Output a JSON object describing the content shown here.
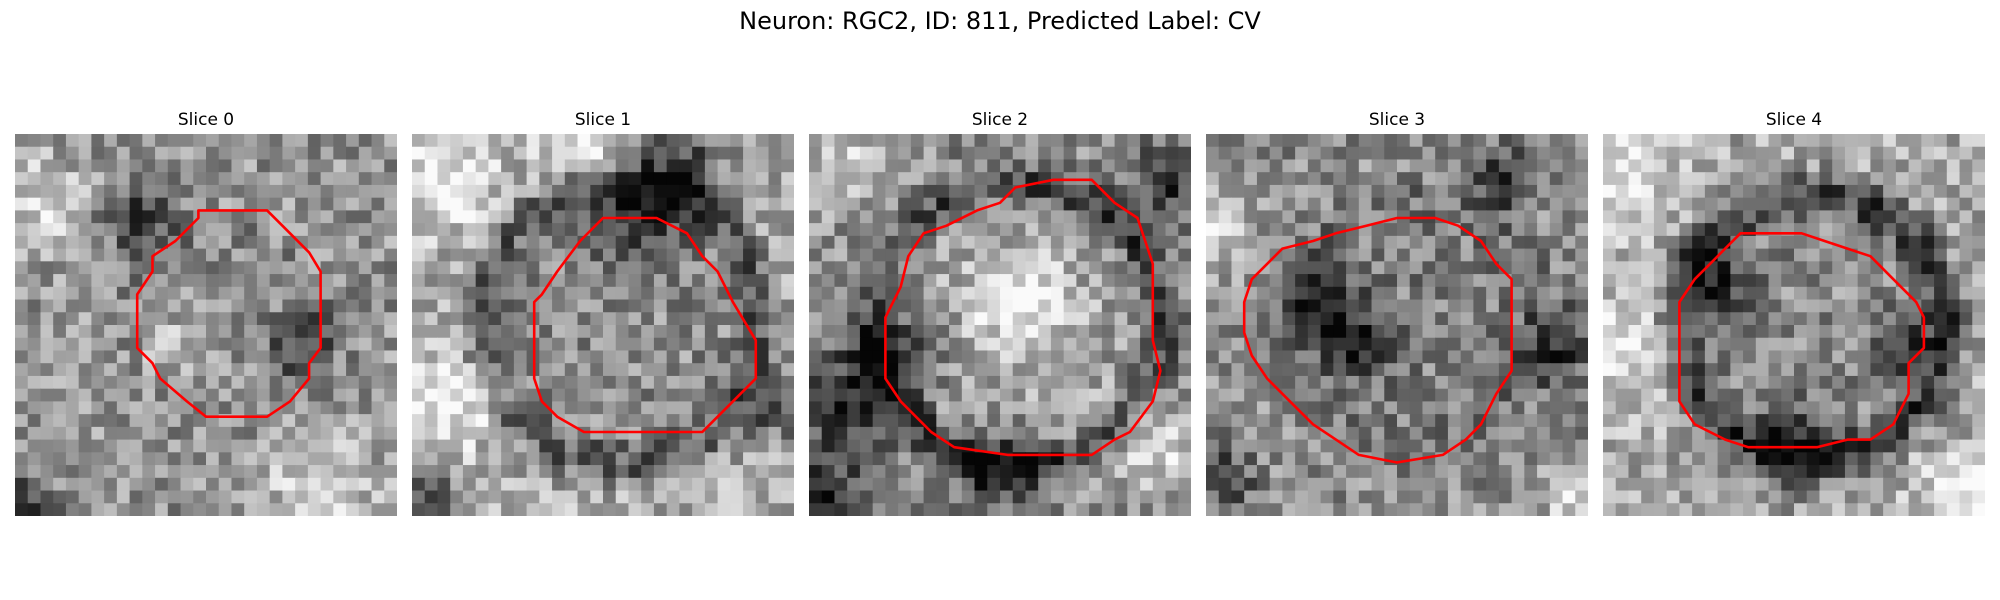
{
  "figure": {
    "title": "Neuron: RGC2, ID: 811, Predicted Label: CV"
  },
  "panels": [
    {
      "title": "Slice 0",
      "seed": 11,
      "base": 0.58,
      "ring": {
        "r": 0.24,
        "depth": 0.05
      },
      "inner": 0.56,
      "dark_blobs": [
        [
          0.33,
          0.22,
          0.07
        ],
        [
          0.02,
          0.98,
          0.06
        ],
        [
          0.75,
          0.55,
          0.06
        ]
      ],
      "light_blobs": [
        [
          0.08,
          0.18,
          0.08
        ],
        [
          0.4,
          0.55,
          0.05
        ],
        [
          0.8,
          0.92,
          0.1
        ]
      ],
      "contour": [
        [
          0.48,
          0.2
        ],
        [
          0.66,
          0.2
        ],
        [
          0.7,
          0.24
        ],
        [
          0.77,
          0.31
        ],
        [
          0.8,
          0.36
        ],
        [
          0.8,
          0.56
        ],
        [
          0.77,
          0.6
        ],
        [
          0.77,
          0.64
        ],
        [
          0.72,
          0.7
        ],
        [
          0.66,
          0.74
        ],
        [
          0.5,
          0.74
        ],
        [
          0.45,
          0.7
        ],
        [
          0.38,
          0.64
        ],
        [
          0.36,
          0.6
        ],
        [
          0.32,
          0.56
        ],
        [
          0.32,
          0.42
        ],
        [
          0.36,
          0.36
        ],
        [
          0.36,
          0.32
        ],
        [
          0.42,
          0.28
        ],
        [
          0.48,
          0.22
        ]
      ]
    },
    {
      "title": "Slice 1",
      "seed": 23,
      "base": 0.68,
      "ring": {
        "r": 0.37,
        "depth": 0.32
      },
      "inner": 0.55,
      "dark_blobs": [
        [
          0.58,
          0.18,
          0.1
        ],
        [
          0.72,
          0.08,
          0.08
        ],
        [
          0.05,
          0.95,
          0.05
        ],
        [
          0.95,
          0.72,
          0.06
        ]
      ],
      "light_blobs": [
        [
          0.08,
          0.12,
          0.08
        ],
        [
          0.45,
          0.02,
          0.08
        ],
        [
          0.1,
          0.7,
          0.08
        ]
      ],
      "contour": [
        [
          0.5,
          0.22
        ],
        [
          0.64,
          0.22
        ],
        [
          0.72,
          0.26
        ],
        [
          0.76,
          0.32
        ],
        [
          0.8,
          0.36
        ],
        [
          0.84,
          0.44
        ],
        [
          0.9,
          0.54
        ],
        [
          0.9,
          0.64
        ],
        [
          0.84,
          0.7
        ],
        [
          0.78,
          0.76
        ],
        [
          0.76,
          0.78
        ],
        [
          0.58,
          0.78
        ],
        [
          0.45,
          0.78
        ],
        [
          0.38,
          0.74
        ],
        [
          0.34,
          0.7
        ],
        [
          0.32,
          0.64
        ],
        [
          0.32,
          0.44
        ],
        [
          0.34,
          0.42
        ],
        [
          0.38,
          0.36
        ],
        [
          0.44,
          0.28
        ]
      ]
    },
    {
      "title": "Slice 2",
      "seed": 37,
      "base": 0.55,
      "ring": {
        "r": 0.37,
        "depth": 0.28
      },
      "inner": 0.62,
      "dark_blobs": [
        [
          0.08,
          0.72,
          0.1
        ],
        [
          0.22,
          0.58,
          0.08
        ],
        [
          0.95,
          0.12,
          0.08
        ],
        [
          0.5,
          0.88,
          0.08
        ],
        [
          0.05,
          0.95,
          0.06
        ]
      ],
      "light_blobs": [
        [
          0.1,
          0.08,
          0.08
        ],
        [
          0.9,
          0.82,
          0.08
        ],
        [
          0.55,
          0.45,
          0.1
        ]
      ],
      "contour": [
        [
          0.54,
          0.14
        ],
        [
          0.64,
          0.12
        ],
        [
          0.74,
          0.12
        ],
        [
          0.8,
          0.18
        ],
        [
          0.86,
          0.22
        ],
        [
          0.88,
          0.28
        ],
        [
          0.9,
          0.34
        ],
        [
          0.9,
          0.54
        ],
        [
          0.92,
          0.62
        ],
        [
          0.9,
          0.7
        ],
        [
          0.84,
          0.78
        ],
        [
          0.8,
          0.8
        ],
        [
          0.74,
          0.84
        ],
        [
          0.62,
          0.84
        ],
        [
          0.52,
          0.84
        ],
        [
          0.38,
          0.82
        ],
        [
          0.32,
          0.78
        ],
        [
          0.24,
          0.7
        ],
        [
          0.2,
          0.64
        ],
        [
          0.2,
          0.48
        ],
        [
          0.24,
          0.4
        ],
        [
          0.26,
          0.32
        ],
        [
          0.3,
          0.26
        ],
        [
          0.36,
          0.24
        ],
        [
          0.44,
          0.2
        ],
        [
          0.5,
          0.18
        ]
      ]
    },
    {
      "title": "Slice 3",
      "seed": 53,
      "base": 0.55,
      "ring": {
        "r": 0.33,
        "depth": 0.1
      },
      "inner": 0.5,
      "dark_blobs": [
        [
          0.3,
          0.45,
          0.07
        ],
        [
          0.4,
          0.55,
          0.06
        ],
        [
          0.78,
          0.12,
          0.06
        ],
        [
          0.92,
          0.55,
          0.07
        ],
        [
          0.05,
          0.9,
          0.05
        ]
      ],
      "light_blobs": [
        [
          0.02,
          0.25,
          0.08
        ],
        [
          0.95,
          0.95,
          0.06
        ]
      ],
      "contour": [
        [
          0.5,
          0.22
        ],
        [
          0.6,
          0.22
        ],
        [
          0.66,
          0.24
        ],
        [
          0.72,
          0.28
        ],
        [
          0.76,
          0.34
        ],
        [
          0.8,
          0.38
        ],
        [
          0.8,
          0.44
        ],
        [
          0.8,
          0.56
        ],
        [
          0.8,
          0.62
        ],
        [
          0.76,
          0.68
        ],
        [
          0.74,
          0.72
        ],
        [
          0.72,
          0.76
        ],
        [
          0.68,
          0.8
        ],
        [
          0.62,
          0.84
        ],
        [
          0.5,
          0.86
        ],
        [
          0.4,
          0.84
        ],
        [
          0.34,
          0.8
        ],
        [
          0.28,
          0.76
        ],
        [
          0.22,
          0.7
        ],
        [
          0.16,
          0.64
        ],
        [
          0.12,
          0.58
        ],
        [
          0.1,
          0.52
        ],
        [
          0.1,
          0.44
        ],
        [
          0.12,
          0.38
        ],
        [
          0.16,
          0.34
        ],
        [
          0.2,
          0.3
        ],
        [
          0.28,
          0.28
        ],
        [
          0.34,
          0.26
        ],
        [
          0.42,
          0.24
        ]
      ]
    },
    {
      "title": "Slice 4",
      "seed": 71,
      "base": 0.66,
      "ring": {
        "r": 0.35,
        "depth": 0.42
      },
      "inner": 0.55,
      "dark_blobs": [
        [
          0.3,
          0.4,
          0.07
        ],
        [
          0.78,
          0.55,
          0.06
        ],
        [
          0.5,
          0.82,
          0.08
        ]
      ],
      "light_blobs": [
        [
          0.05,
          0.1,
          0.1
        ],
        [
          0.95,
          0.95,
          0.08
        ],
        [
          0.05,
          0.55,
          0.08
        ]
      ],
      "contour": [
        [
          0.36,
          0.26
        ],
        [
          0.42,
          0.26
        ],
        [
          0.52,
          0.26
        ],
        [
          0.58,
          0.28
        ],
        [
          0.64,
          0.3
        ],
        [
          0.7,
          0.32
        ],
        [
          0.76,
          0.38
        ],
        [
          0.82,
          0.44
        ],
        [
          0.84,
          0.48
        ],
        [
          0.84,
          0.56
        ],
        [
          0.8,
          0.6
        ],
        [
          0.8,
          0.68
        ],
        [
          0.76,
          0.76
        ],
        [
          0.7,
          0.8
        ],
        [
          0.64,
          0.8
        ],
        [
          0.56,
          0.82
        ],
        [
          0.48,
          0.82
        ],
        [
          0.38,
          0.82
        ],
        [
          0.32,
          0.8
        ],
        [
          0.24,
          0.76
        ],
        [
          0.2,
          0.7
        ],
        [
          0.2,
          0.6
        ],
        [
          0.2,
          0.44
        ],
        [
          0.24,
          0.38
        ],
        [
          0.28,
          0.34
        ],
        [
          0.32,
          0.3
        ]
      ]
    }
  ],
  "colors": {
    "contour": "#ff0000",
    "background": "#ffffff",
    "text": "#000000"
  }
}
